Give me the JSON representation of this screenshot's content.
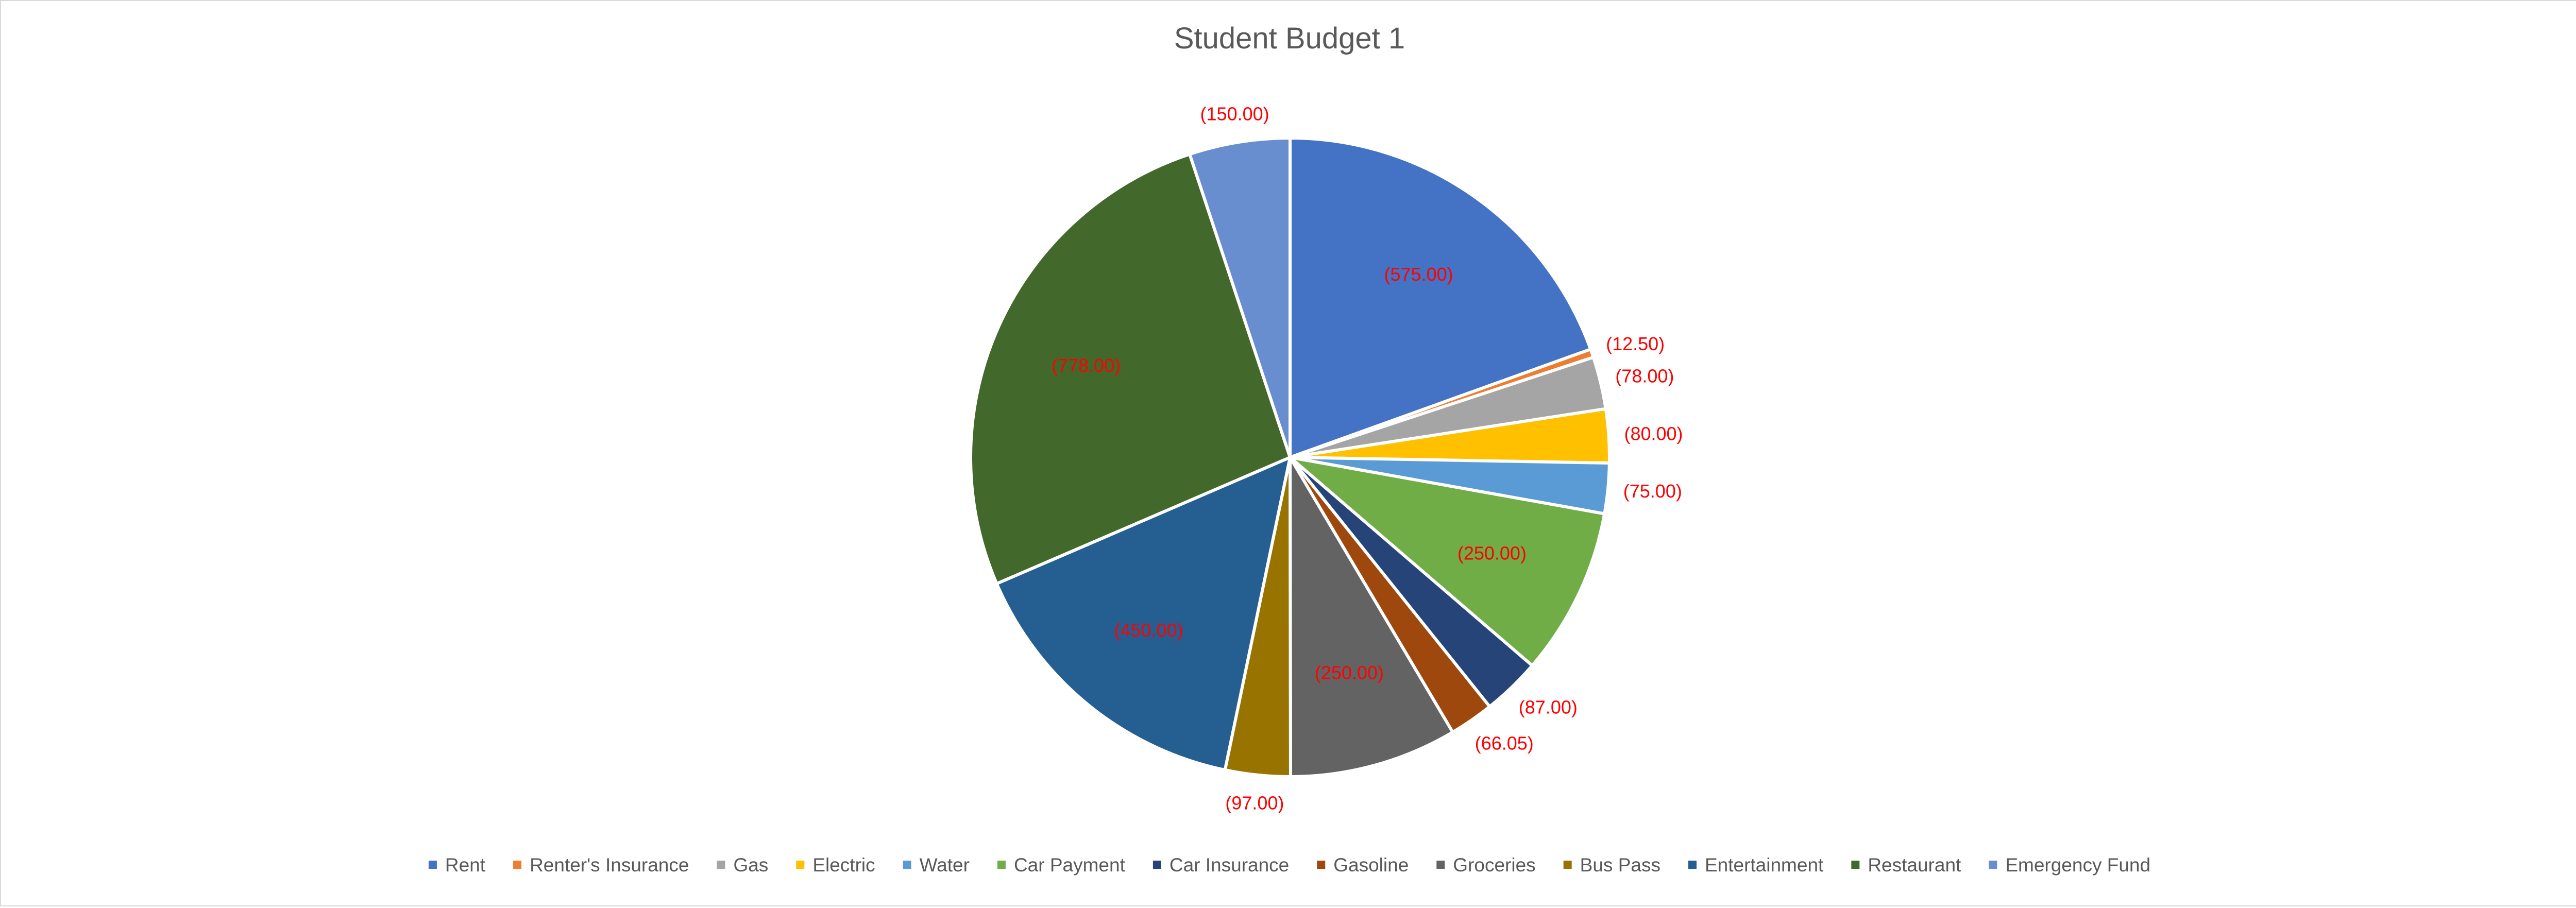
{
  "chart_data": {
    "type": "pie",
    "title": "Student Budget 1",
    "legend_position": "bottom",
    "slices": [
      {
        "label": "Rent",
        "value": 575.0,
        "display": "(575.00)",
        "color": "#4472C4"
      },
      {
        "label": "Renter's Insurance",
        "value": 12.5,
        "display": "(12.50)",
        "color": "#ED7D31"
      },
      {
        "label": "Gas",
        "value": 78.0,
        "display": "(78.00)",
        "color": "#A5A5A5"
      },
      {
        "label": "Electric",
        "value": 80.0,
        "display": "(80.00)",
        "color": "#FFC000"
      },
      {
        "label": "Water",
        "value": 75.0,
        "display": "(75.00)",
        "color": "#5B9BD5"
      },
      {
        "label": "Car Payment",
        "value": 250.0,
        "display": "(250.00)",
        "color": "#70AD47"
      },
      {
        "label": "Car Insurance",
        "value": 87.0,
        "display": "(87.00)",
        "color": "#264478"
      },
      {
        "label": "Gasoline",
        "value": 66.05,
        "display": "(66.05)",
        "color": "#9E480E"
      },
      {
        "label": "Groceries",
        "value": 250.0,
        "display": "(250.00)",
        "color": "#636363"
      },
      {
        "label": "Bus Pass",
        "value": 97.0,
        "display": "(97.00)",
        "color": "#997300"
      },
      {
        "label": "Entertainment",
        "value": 450.0,
        "display": "(450.00)",
        "color": "#255E91"
      },
      {
        "label": "Restaurant",
        "value": 778.0,
        "display": "(778.00)",
        "color": "#43682B"
      },
      {
        "label": "Emergency Fund",
        "value": 150.0,
        "display": "(150.00)",
        "color": "#698ED0"
      }
    ]
  }
}
